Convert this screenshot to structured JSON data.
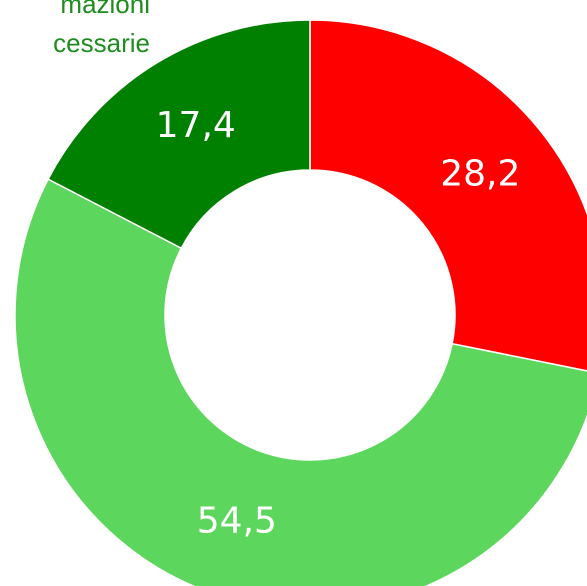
{
  "chart_data": {
    "type": "donut",
    "annotations": [
      "mazioni",
      "cessarie"
    ],
    "values": [
      28.2,
      54.5,
      17.4
    ],
    "value_labels": [
      "28,2",
      "54,5",
      "17,4"
    ],
    "colors": [
      "#ff0000",
      "#5cd65c",
      "#008000"
    ]
  }
}
